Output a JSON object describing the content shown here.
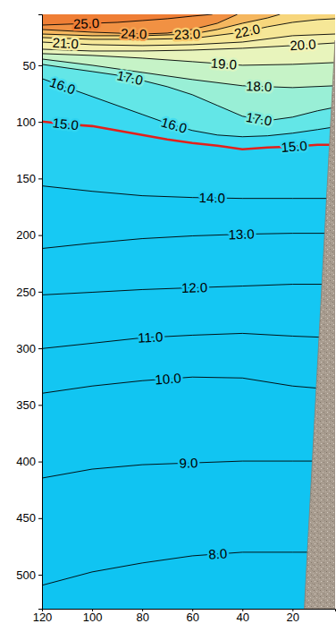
{
  "chart_data": {
    "type": "contour",
    "xlim": [
      120,
      3
    ],
    "ylim": [
      5,
      530
    ],
    "xticks": [
      120,
      100,
      80,
      60,
      40,
      20
    ],
    "yticks": [
      50,
      100,
      150,
      200,
      250,
      300,
      350,
      400,
      450,
      500
    ],
    "series": [
      {
        "name": "25.0",
        "level": 25,
        "color": "#000000",
        "x": [
          120,
          110,
          100,
          90,
          80,
          70,
          60,
          52
        ],
        "values": [
          14.5,
          13.7,
          12.9,
          12.1,
          10.5,
          8.9,
          6.6,
          5
        ]
      },
      {
        "name": "24.0",
        "level": 24,
        "color": "#000000",
        "x": [
          120,
          100,
          80,
          70,
          60,
          50,
          42
        ],
        "values": [
          18.4,
          20.8,
          22.4,
          21.6,
          18.4,
          12.9,
          5
        ]
      },
      {
        "name": "23.0",
        "level": 23,
        "color": "#000000",
        "x": [
          120,
          100,
          80,
          60,
          50,
          40,
          30,
          25
        ],
        "values": [
          22.4,
          23.9,
          23.9,
          22.4,
          18.4,
          12.9,
          8.2,
          5
        ]
      },
      {
        "name": "22.0",
        "level": 22,
        "color": "#000000",
        "x": [
          120,
          100,
          80,
          60,
          40,
          30,
          20,
          10,
          3
        ],
        "values": [
          25.5,
          27.1,
          27.1,
          26.3,
          20.8,
          16.0,
          12.1,
          9.7,
          8.9
        ]
      },
      {
        "name": "21.0",
        "level": 21,
        "color": "#000000",
        "x": [
          120,
          100,
          80,
          60,
          40,
          20,
          3
        ],
        "values": [
          29.5,
          31.8,
          32.6,
          31.8,
          29.5,
          23.9,
          22.4
        ]
      },
      {
        "name": "20.0",
        "level": 20,
        "color": "#000000",
        "x": [
          120,
          100,
          80,
          60,
          40,
          20,
          3
        ],
        "values": [
          35.8,
          37.4,
          37.4,
          36.6,
          35.0,
          32.6,
          30.3
        ]
      },
      {
        "name": "19.0",
        "level": 19,
        "color": "#000000",
        "x": [
          120,
          100,
          80,
          60,
          40,
          20,
          3
        ],
        "values": [
          39.7,
          41.3,
          43.7,
          46.8,
          50.0,
          49.2,
          47.6
        ]
      },
      {
        "name": "18.0",
        "level": 18,
        "color": "#000000",
        "x": [
          120,
          100,
          80,
          60,
          40,
          20,
          3
        ],
        "values": [
          44.5,
          50.0,
          56.3,
          62.6,
          68.1,
          69.7,
          68.1
        ]
      },
      {
        "name": "17.0",
        "level": 17,
        "color": "#000000",
        "x": [
          120,
          110,
          100,
          90,
          80,
          70,
          60,
          50,
          40,
          30,
          20,
          10,
          3
        ],
        "values": [
          49.2,
          52.4,
          55.5,
          58.7,
          63.4,
          68.9,
          76.0,
          85.5,
          95.0,
          98.9,
          95.8,
          90.2,
          87.1
        ]
      },
      {
        "name": "16.0",
        "level": 16,
        "color": "#000000",
        "x": [
          120,
          110,
          100,
          90,
          80,
          70,
          60,
          50,
          40,
          30,
          20,
          10,
          3
        ],
        "values": [
          61.8,
          69.7,
          77.6,
          85.5,
          93.4,
          101.3,
          107.6,
          111.6,
          113.1,
          112.3,
          110.0,
          106.8,
          104.4
        ]
      },
      {
        "name": "15.0",
        "level": 15,
        "color": "#e3201b",
        "line_style": "thick",
        "x": [
          120,
          110,
          100,
          90,
          80,
          70,
          60,
          50,
          40,
          30,
          20,
          10,
          3
        ],
        "values": [
          99.7,
          102.1,
          103.7,
          107.6,
          111.6,
          115.5,
          118.7,
          121.0,
          124.2,
          122.6,
          121.8,
          120.2,
          120.2
        ]
      },
      {
        "name": "14.0",
        "level": 14,
        "color": "#000000",
        "x": [
          120,
          100,
          80,
          60,
          40,
          20,
          3
        ],
        "values": [
          156.5,
          161.3,
          165.2,
          166.8,
          167.6,
          167.6,
          167.6
        ]
      },
      {
        "name": "13.0",
        "level": 13,
        "color": "#000000",
        "x": [
          120,
          100,
          80,
          60,
          40,
          20,
          3
        ],
        "values": [
          211.8,
          207.1,
          203.1,
          200.7,
          199.2,
          198.4,
          198.4
        ]
      },
      {
        "name": "12.0",
        "level": 12,
        "color": "#000000",
        "x": [
          120,
          100,
          80,
          60,
          40,
          20,
          3
        ],
        "values": [
          252.8,
          250.5,
          248.1,
          246.5,
          245.0,
          243.4,
          243.4
        ]
      },
      {
        "name": "11.0",
        "level": 11,
        "color": "#000000",
        "x": [
          120,
          100,
          80,
          60,
          40,
          20,
          3
        ],
        "values": [
          300.2,
          295.5,
          290.7,
          288.4,
          286.8,
          289.2,
          290.7
        ]
      },
      {
        "name": "10.0",
        "level": 10,
        "color": "#000000",
        "x": [
          120,
          100,
          80,
          60,
          40,
          20,
          3
        ],
        "values": [
          339.7,
          333.3,
          328.6,
          325.4,
          326.2,
          333.3,
          336.5
        ]
      },
      {
        "name": "9.0",
        "level": 9,
        "color": "#000000",
        "x": [
          120,
          100,
          80,
          60,
          40,
          20,
          3
        ],
        "values": [
          414.6,
          406.7,
          402.8,
          401.2,
          399.6,
          399.6,
          399.6
        ]
      },
      {
        "name": "8.0",
        "level": 8,
        "color": "#000000",
        "x": [
          120,
          100,
          80,
          60,
          40,
          20,
          3
        ],
        "values": [
          509.3,
          497.5,
          489.6,
          483.3,
          480.1,
          480.1,
          480.1
        ]
      }
    ],
    "seabed": {
      "x": [
        15.3,
        3
      ],
      "y": [
        530,
        28
      ]
    }
  }
}
